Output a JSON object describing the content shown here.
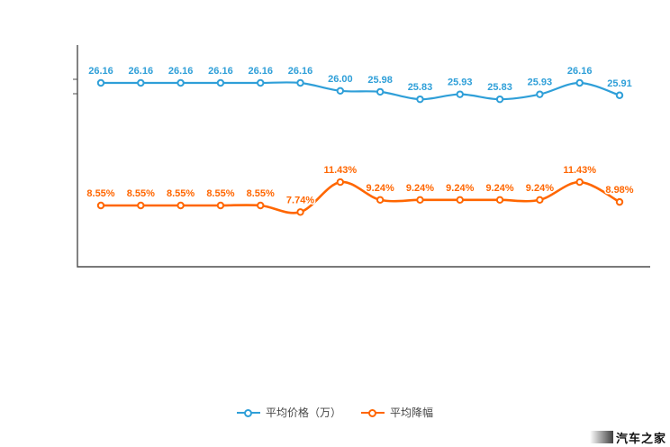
{
  "page": {
    "background": "#ffffff"
  },
  "watermark": {
    "text": "汽车之家"
  },
  "chart_data": {
    "type": "line",
    "title": "",
    "x": [
      1,
      2,
      3,
      4,
      5,
      6,
      7,
      8,
      9,
      10,
      11,
      12,
      13,
      14
    ],
    "x_tick_labels": [],
    "y_tick_labels": [],
    "grid": false,
    "legend_position": "bottom",
    "axis_color": "#4d4d4d",
    "series": [
      {
        "name": "平均价格（万）",
        "color": "#2f9fd8",
        "axis": "left",
        "y_range": [
          25.6,
          26.4
        ],
        "values": [
          26.16,
          26.16,
          26.16,
          26.16,
          26.16,
          26.16,
          26.0,
          25.98,
          25.83,
          25.93,
          25.83,
          25.93,
          26.16,
          25.91
        ],
        "labels": [
          "26.16",
          "26.16",
          "26.16",
          "26.16",
          "26.16",
          "26.16",
          "26.00",
          "25.98",
          "25.83",
          "25.93",
          "25.83",
          "25.93",
          "26.16",
          "25.91"
        ]
      },
      {
        "name": "平均降幅",
        "color": "#ff6600",
        "axis": "right",
        "y_range": [
          0,
          15
        ],
        "values": [
          8.55,
          8.55,
          8.55,
          8.55,
          8.55,
          7.74,
          11.43,
          9.24,
          9.24,
          9.24,
          9.24,
          9.24,
          11.43,
          8.98
        ],
        "labels": [
          "8.55%",
          "8.55%",
          "8.55%",
          "8.55%",
          "8.55%",
          "7.74%",
          "11.43%",
          "9.24%",
          "9.24%",
          "9.24%",
          "9.24%",
          "9.24%",
          "11.43%",
          "8.98%"
        ]
      }
    ]
  }
}
